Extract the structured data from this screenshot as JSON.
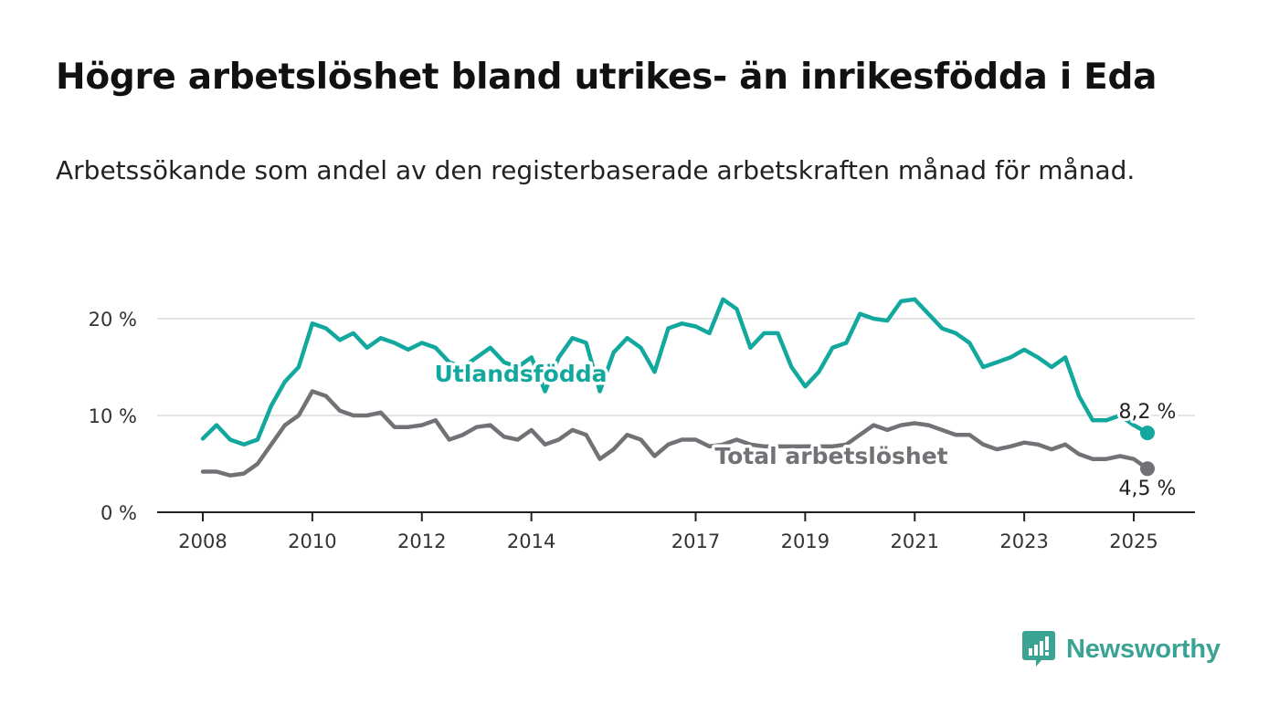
{
  "title": "Högre arbetslöshet bland utrikes- än inrikesfödda i Eda",
  "subtitle": "Arbetssökande som andel av den registerbaserade arbetskraften månad för månad.",
  "brand": {
    "name": "Newsworthy"
  },
  "chart_data": {
    "type": "line",
    "x_axis": {
      "type": "date",
      "ticks": [
        "2008",
        "2010",
        "2012",
        "2014",
        "2017",
        "2019",
        "2021",
        "2023",
        "2025"
      ]
    },
    "y_axis": {
      "ticks": [
        "0 %",
        "10 %",
        "20 %"
      ],
      "ylim": [
        0,
        23
      ]
    },
    "grid": "horizontal",
    "series": [
      {
        "name": "Utlandsfödda",
        "color": "#13a89e",
        "end_label": "8,2 %",
        "points": [
          [
            "2008-01",
            7.6
          ],
          [
            "2008-04",
            9.0
          ],
          [
            "2008-07",
            7.5
          ],
          [
            "2008-10",
            7.0
          ],
          [
            "2009-01",
            7.5
          ],
          [
            "2009-04",
            11.0
          ],
          [
            "2009-07",
            13.5
          ],
          [
            "2009-10",
            15.0
          ],
          [
            "2010-01",
            19.5
          ],
          [
            "2010-04",
            19.0
          ],
          [
            "2010-07",
            17.8
          ],
          [
            "2010-10",
            18.5
          ],
          [
            "2011-01",
            17.0
          ],
          [
            "2011-04",
            18.0
          ],
          [
            "2011-07",
            17.5
          ],
          [
            "2011-10",
            16.8
          ],
          [
            "2012-01",
            17.5
          ],
          [
            "2012-04",
            17.0
          ],
          [
            "2012-07",
            15.5
          ],
          [
            "2012-10",
            15.0
          ],
          [
            "2013-01",
            16.0
          ],
          [
            "2013-04",
            17.0
          ],
          [
            "2013-07",
            15.5
          ],
          [
            "2013-10",
            15.0
          ],
          [
            "2014-01",
            16.0
          ],
          [
            "2014-04",
            12.5
          ],
          [
            "2014-07",
            16.0
          ],
          [
            "2014-10",
            18.0
          ],
          [
            "2015-01",
            17.5
          ],
          [
            "2015-04",
            12.5
          ],
          [
            "2015-07",
            16.5
          ],
          [
            "2015-10",
            18.0
          ],
          [
            "2016-01",
            17.0
          ],
          [
            "2016-04",
            14.5
          ],
          [
            "2016-07",
            19.0
          ],
          [
            "2016-10",
            19.5
          ],
          [
            "2017-01",
            19.2
          ],
          [
            "2017-04",
            18.5
          ],
          [
            "2017-07",
            22.0
          ],
          [
            "2017-10",
            21.0
          ],
          [
            "2018-01",
            17.0
          ],
          [
            "2018-04",
            18.5
          ],
          [
            "2018-07",
            18.5
          ],
          [
            "2018-10",
            15.0
          ],
          [
            "2019-01",
            13.0
          ],
          [
            "2019-04",
            14.5
          ],
          [
            "2019-07",
            17.0
          ],
          [
            "2019-10",
            17.5
          ],
          [
            "2020-01",
            20.5
          ],
          [
            "2020-04",
            20.0
          ],
          [
            "2020-07",
            19.8
          ],
          [
            "2020-10",
            21.8
          ],
          [
            "2021-01",
            22.0
          ],
          [
            "2021-04",
            20.5
          ],
          [
            "2021-07",
            19.0
          ],
          [
            "2021-10",
            18.5
          ],
          [
            "2022-01",
            17.5
          ],
          [
            "2022-04",
            15.0
          ],
          [
            "2022-07",
            15.5
          ],
          [
            "2022-10",
            16.0
          ],
          [
            "2023-01",
            16.8
          ],
          [
            "2023-04",
            16.0
          ],
          [
            "2023-07",
            15.0
          ],
          [
            "2023-10",
            16.0
          ],
          [
            "2024-01",
            12.0
          ],
          [
            "2024-04",
            9.5
          ],
          [
            "2024-07",
            9.5
          ],
          [
            "2024-10",
            10.0
          ],
          [
            "2025-01",
            9.0
          ],
          [
            "2025-04",
            8.2
          ]
        ]
      },
      {
        "name": "Total arbetslöshet",
        "color": "#737176",
        "end_label": "4,5 %",
        "points": [
          [
            "2008-01",
            4.2
          ],
          [
            "2008-04",
            4.2
          ],
          [
            "2008-07",
            3.8
          ],
          [
            "2008-10",
            4.0
          ],
          [
            "2009-01",
            5.0
          ],
          [
            "2009-04",
            7.0
          ],
          [
            "2009-07",
            9.0
          ],
          [
            "2009-10",
            10.0
          ],
          [
            "2010-01",
            12.5
          ],
          [
            "2010-04",
            12.0
          ],
          [
            "2010-07",
            10.5
          ],
          [
            "2010-10",
            10.0
          ],
          [
            "2011-01",
            10.0
          ],
          [
            "2011-04",
            10.3
          ],
          [
            "2011-07",
            8.8
          ],
          [
            "2011-10",
            8.8
          ],
          [
            "2012-01",
            9.0
          ],
          [
            "2012-04",
            9.5
          ],
          [
            "2012-07",
            7.5
          ],
          [
            "2012-10",
            8.0
          ],
          [
            "2013-01",
            8.8
          ],
          [
            "2013-04",
            9.0
          ],
          [
            "2013-07",
            7.8
          ],
          [
            "2013-10",
            7.5
          ],
          [
            "2014-01",
            8.5
          ],
          [
            "2014-04",
            7.0
          ],
          [
            "2014-07",
            7.5
          ],
          [
            "2014-10",
            8.5
          ],
          [
            "2015-01",
            8.0
          ],
          [
            "2015-04",
            5.5
          ],
          [
            "2015-07",
            6.5
          ],
          [
            "2015-10",
            8.0
          ],
          [
            "2016-01",
            7.5
          ],
          [
            "2016-04",
            5.8
          ],
          [
            "2016-07",
            7.0
          ],
          [
            "2016-10",
            7.5
          ],
          [
            "2017-01",
            7.5
          ],
          [
            "2017-04",
            6.8
          ],
          [
            "2017-07",
            7.0
          ],
          [
            "2017-10",
            7.5
          ],
          [
            "2018-01",
            7.0
          ],
          [
            "2018-04",
            6.8
          ],
          [
            "2018-07",
            6.8
          ],
          [
            "2018-10",
            6.8
          ],
          [
            "2019-01",
            6.8
          ],
          [
            "2019-04",
            6.8
          ],
          [
            "2019-07",
            6.8
          ],
          [
            "2019-10",
            7.0
          ],
          [
            "2020-01",
            8.0
          ],
          [
            "2020-04",
            9.0
          ],
          [
            "2020-07",
            8.5
          ],
          [
            "2020-10",
            9.0
          ],
          [
            "2021-01",
            9.2
          ],
          [
            "2021-04",
            9.0
          ],
          [
            "2021-07",
            8.5
          ],
          [
            "2021-10",
            8.0
          ],
          [
            "2022-01",
            8.0
          ],
          [
            "2022-04",
            7.0
          ],
          [
            "2022-07",
            6.5
          ],
          [
            "2022-10",
            6.8
          ],
          [
            "2023-01",
            7.2
          ],
          [
            "2023-04",
            7.0
          ],
          [
            "2023-07",
            6.5
          ],
          [
            "2023-10",
            7.0
          ],
          [
            "2024-01",
            6.0
          ],
          [
            "2024-04",
            5.5
          ],
          [
            "2024-07",
            5.5
          ],
          [
            "2024-10",
            5.8
          ],
          [
            "2025-01",
            5.5
          ],
          [
            "2025-04",
            4.5
          ]
        ]
      }
    ]
  }
}
